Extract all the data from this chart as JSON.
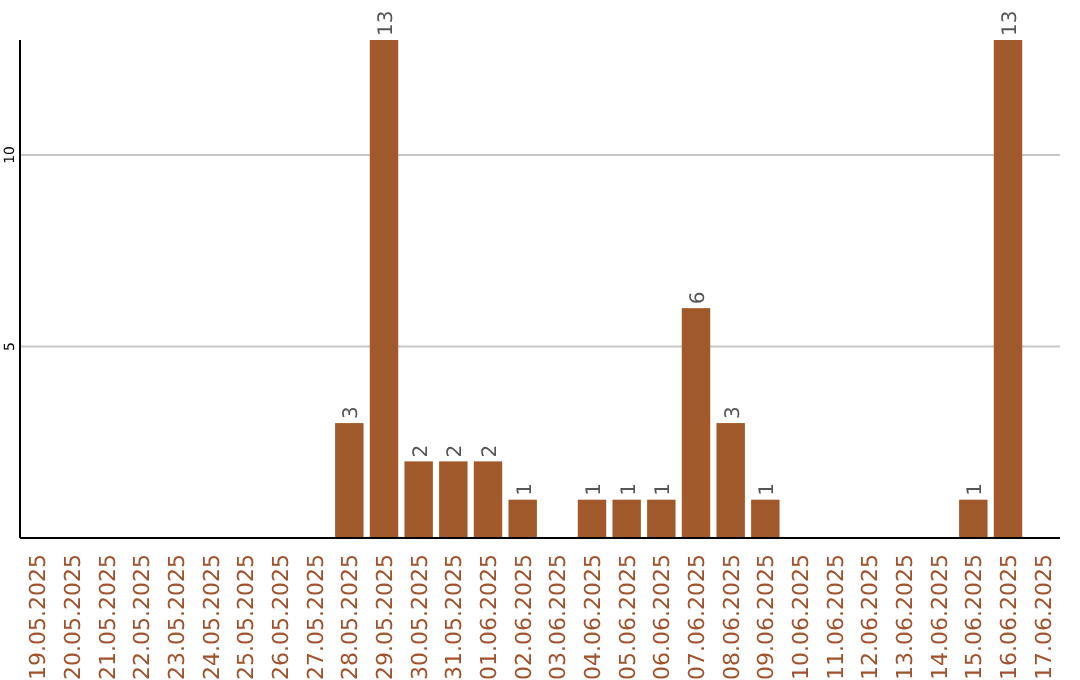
{
  "chart_data": {
    "type": "bar",
    "categories": [
      "19.05.2025",
      "20.05.2025",
      "21.05.2025",
      "22.05.2025",
      "23.05.2025",
      "24.05.2025",
      "25.05.2025",
      "26.05.2025",
      "27.05.2025",
      "28.05.2025",
      "29.05.2025",
      "30.05.2025",
      "31.05.2025",
      "01.06.2025",
      "02.06.2025",
      "03.06.2025",
      "04.06.2025",
      "05.06.2025",
      "06.06.2025",
      "07.06.2025",
      "08.06.2025",
      "09.06.2025",
      "10.06.2025",
      "11.06.2025",
      "12.06.2025",
      "13.06.2025",
      "14.06.2025",
      "15.06.2025",
      "16.06.2025",
      "17.06.2025"
    ],
    "values": [
      null,
      null,
      null,
      null,
      null,
      null,
      null,
      null,
      null,
      3,
      13,
      2,
      2,
      2,
      1,
      null,
      1,
      1,
      1,
      6,
      3,
      1,
      null,
      null,
      null,
      null,
      null,
      1,
      13,
      null
    ],
    "color": "#a0592a",
    "ylim": [
      0,
      13
    ],
    "yticks": [
      5,
      10
    ],
    "grid": "y",
    "data_labels": true
  }
}
